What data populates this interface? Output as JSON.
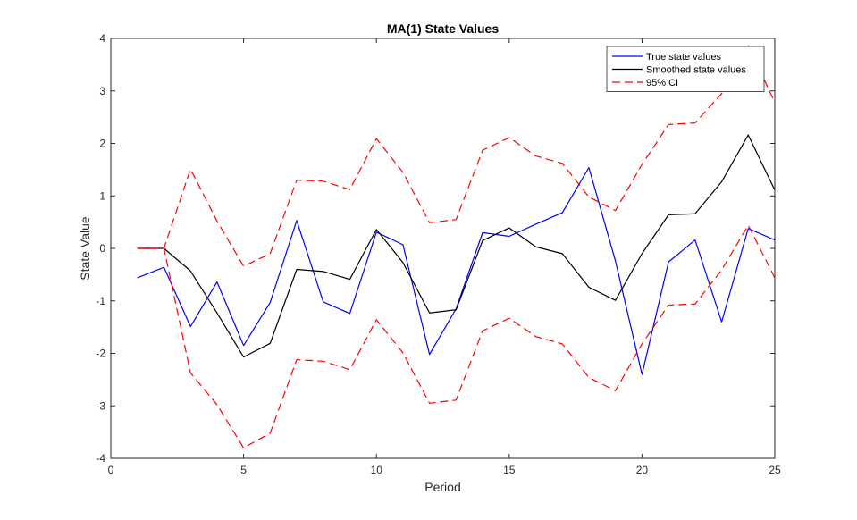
{
  "chart_data": {
    "type": "line",
    "title": "MA(1) State Values",
    "xlabel": "Period",
    "ylabel": "State Value",
    "xlim": [
      0,
      25
    ],
    "ylim": [
      -4,
      4
    ],
    "xticks": [
      0,
      5,
      10,
      15,
      20,
      25
    ],
    "yticks": [
      -4,
      -3,
      -2,
      -1,
      0,
      1,
      2,
      3,
      4
    ],
    "legend_position": "top-right",
    "x": [
      1,
      2,
      3,
      4,
      5,
      6,
      7,
      8,
      9,
      10,
      11,
      12,
      13,
      14,
      15,
      16,
      17,
      18,
      19,
      20,
      21,
      22,
      23,
      24,
      25
    ],
    "series": [
      {
        "name": "True state values",
        "color": "#0000ff",
        "style": "solid",
        "values": [
          -0.56,
          -0.36,
          -1.49,
          -0.64,
          -1.85,
          -1.03,
          0.53,
          -1.02,
          -1.24,
          0.31,
          0.07,
          -2.02,
          -1.15,
          0.3,
          0.23,
          0.46,
          0.68,
          1.54,
          -0.24,
          -2.4,
          -0.26,
          0.16,
          -1.4,
          0.38,
          0.16
        ]
      },
      {
        "name": "Smoothed state values",
        "color": "#000000",
        "style": "solid",
        "values": [
          0.0,
          0.0,
          -0.43,
          -1.23,
          -2.07,
          -1.81,
          -0.4,
          -0.44,
          -0.59,
          0.36,
          -0.27,
          -1.23,
          -1.17,
          0.15,
          0.39,
          0.03,
          -0.1,
          -0.74,
          -0.99,
          -0.1,
          0.64,
          0.66,
          1.27,
          2.16,
          1.11
        ]
      },
      {
        "name": "95% CI",
        "color": "#ff0000",
        "style": "dashed",
        "values": [
          0.0,
          0.0,
          1.51,
          0.52,
          -0.34,
          -0.1,
          1.3,
          1.28,
          1.12,
          2.09,
          1.45,
          0.49,
          0.55,
          1.87,
          2.11,
          1.76,
          1.62,
          0.98,
          0.72,
          1.6,
          2.36,
          2.39,
          2.95,
          3.87,
          2.78
        ]
      },
      {
        "name": "95% CI lower",
        "color": "#ff0000",
        "style": "dashed",
        "show_in_legend": false,
        "values": [
          0.0,
          0.0,
          -2.37,
          -2.98,
          -3.8,
          -3.52,
          -2.12,
          -2.15,
          -2.31,
          -1.36,
          -1.99,
          -2.95,
          -2.89,
          -1.57,
          -1.33,
          -1.68,
          -1.82,
          -2.46,
          -2.71,
          -1.82,
          -1.08,
          -1.06,
          -0.41,
          0.44,
          -0.56
        ]
      }
    ]
  }
}
